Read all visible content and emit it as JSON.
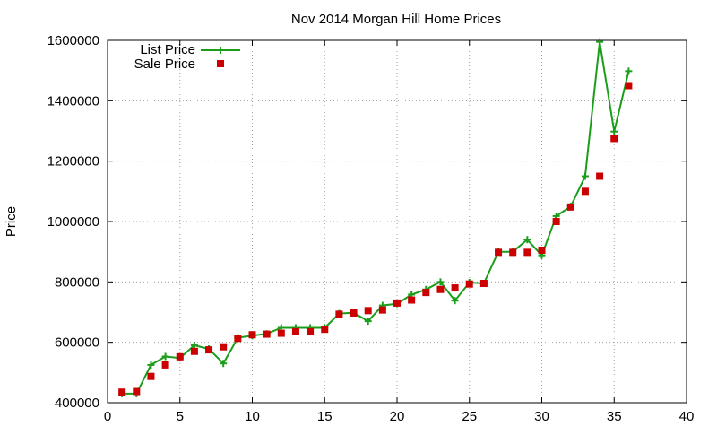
{
  "colors": {
    "list_price": "#1a9e1a",
    "sale_price": "#cc0000",
    "grid": "#a0a0a0",
    "axis": "#000000",
    "background": "#ffffff"
  },
  "chart_data": {
    "type": "line",
    "title": "Nov 2014 Morgan Hill Home Prices",
    "xlabel": "",
    "ylabel": "Price",
    "xlim": [
      0,
      40
    ],
    "ylim": [
      400000,
      1600000
    ],
    "x_ticks": [
      0,
      5,
      10,
      15,
      20,
      25,
      30,
      35,
      40
    ],
    "y_ticks": [
      400000,
      600000,
      800000,
      1000000,
      1200000,
      1400000,
      1600000
    ],
    "grid": true,
    "legend_position": "top-left",
    "series": [
      {
        "name": "List Price",
        "style": "line-with-plus-markers",
        "x": [
          1,
          2,
          3,
          4,
          5,
          6,
          7,
          8,
          9,
          10,
          11,
          12,
          13,
          14,
          15,
          16,
          17,
          18,
          19,
          20,
          21,
          22,
          23,
          24,
          25,
          26,
          27,
          28,
          29,
          30,
          31,
          32,
          33,
          34,
          35,
          36
        ],
        "values": [
          430000,
          430000,
          525000,
          553000,
          548000,
          590000,
          578000,
          530000,
          615000,
          622000,
          628000,
          648000,
          648000,
          648000,
          648000,
          695000,
          698000,
          670000,
          722000,
          728000,
          758000,
          775000,
          800000,
          738000,
          798000,
          795000,
          900000,
          900000,
          940000,
          888000,
          1018000,
          1050000,
          1150000,
          1595000,
          1298000,
          1498000
        ]
      },
      {
        "name": "Sale Price",
        "style": "square-markers",
        "x": [
          1,
          2,
          3,
          4,
          5,
          6,
          7,
          8,
          9,
          10,
          11,
          12,
          13,
          14,
          15,
          16,
          17,
          18,
          19,
          20,
          21,
          22,
          23,
          24,
          25,
          26,
          27,
          28,
          29,
          30,
          31,
          32,
          33,
          34,
          35,
          36
        ],
        "values": [
          435000,
          437000,
          487000,
          525000,
          552000,
          570000,
          575000,
          585000,
          613000,
          625000,
          627000,
          630000,
          635000,
          635000,
          643000,
          693000,
          697000,
          705000,
          707000,
          730000,
          740000,
          765000,
          775000,
          780000,
          793000,
          795000,
          898000,
          898000,
          898000,
          905000,
          1000000,
          1048000,
          1100000,
          1150000,
          1275000,
          1450000
        ]
      }
    ]
  }
}
